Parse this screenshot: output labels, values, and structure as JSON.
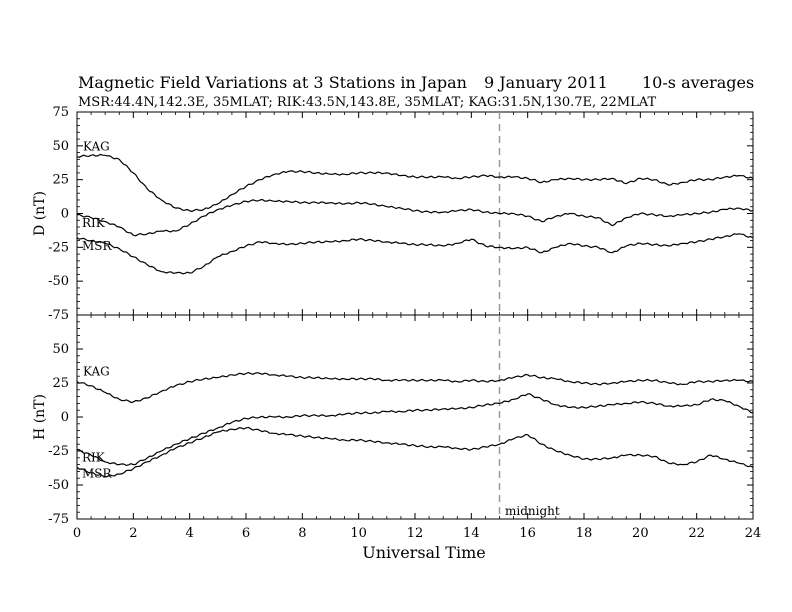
{
  "header": {
    "title_main": "Magnetic Field Variations at 3 Stations in Japan",
    "title_date": "9   January  2011",
    "title_avg": "10-s averages",
    "subtitle": "MSR:44.4N,142.3E, 35MLAT;  RIK:43.5N,143.8E, 35MLAT;  KAG:31.5N,130.7E, 22MLAT"
  },
  "colors": {
    "trace": "#000000",
    "midnight_line": "#9a9a9a",
    "frame": "#000000"
  },
  "chart_data": [
    {
      "type": "line",
      "panel": "top",
      "ylabel": "D (nT)",
      "ylim": [
        -75,
        75
      ],
      "yticks": [
        -75,
        -50,
        -25,
        0,
        25,
        50,
        75
      ],
      "xlim": [
        0,
        24
      ],
      "xticks": [
        0,
        2,
        4,
        6,
        8,
        10,
        12,
        14,
        16,
        18,
        20,
        22,
        24
      ],
      "series": [
        {
          "name": "KAG",
          "x": [
            0,
            0.5,
            1,
            1.5,
            2,
            2.5,
            3,
            3.5,
            4,
            4.5,
            5,
            5.5,
            6,
            6.5,
            7,
            7.5,
            8,
            8.5,
            9,
            9.5,
            10,
            10.5,
            11,
            11.5,
            12,
            12.5,
            13,
            13.5,
            14,
            14.5,
            15,
            15.5,
            16,
            16.5,
            17,
            17.5,
            18,
            18.5,
            19,
            19.5,
            20,
            20.5,
            21,
            21.5,
            22,
            22.5,
            23,
            23.5,
            24
          ],
          "y": [
            42,
            43,
            43,
            40,
            30,
            18,
            10,
            4,
            2,
            3,
            7,
            14,
            20,
            25,
            29,
            31,
            31,
            30,
            29,
            29,
            30,
            30,
            30,
            28,
            27,
            27,
            27,
            26,
            27,
            28,
            27,
            27,
            26,
            23,
            25,
            26,
            25,
            25,
            26,
            22,
            26,
            25,
            21,
            23,
            25,
            25,
            27,
            28,
            26
          ]
        },
        {
          "name": "RIK",
          "x": [
            0,
            0.5,
            1,
            1.5,
            2,
            2.5,
            3,
            3.5,
            4,
            4.5,
            5,
            5.5,
            6,
            6.5,
            7,
            7.5,
            8,
            8.5,
            9,
            9.5,
            10,
            10.5,
            11,
            11.5,
            12,
            12.5,
            13,
            13.5,
            14,
            14.5,
            15,
            15.5,
            16,
            16.5,
            17,
            17.5,
            18,
            18.5,
            19,
            19.5,
            20,
            20.5,
            21,
            21.5,
            22,
            22.5,
            23,
            23.5,
            24
          ],
          "y": [
            -1,
            -3,
            -6,
            -10,
            -16,
            -15,
            -13,
            -13,
            -8,
            -2,
            3,
            6,
            9,
            10,
            9,
            9,
            8,
            8,
            8,
            7,
            8,
            7,
            5,
            4,
            2,
            1,
            1,
            2,
            3,
            1,
            0,
            0,
            -2,
            -6,
            -2,
            0,
            -2,
            -3,
            -9,
            -3,
            0,
            -1,
            -2,
            -1,
            0,
            1,
            3,
            4,
            2
          ]
        },
        {
          "name": "MSR",
          "x": [
            0,
            0.5,
            1,
            1.5,
            2,
            2.5,
            3,
            3.5,
            4,
            4.5,
            5,
            5.5,
            6,
            6.5,
            7,
            7.5,
            8,
            8.5,
            9,
            9.5,
            10,
            10.5,
            11,
            11.5,
            12,
            12.5,
            13,
            13.5,
            14,
            14.5,
            15,
            15.5,
            16,
            16.5,
            17,
            17.5,
            18,
            18.5,
            19,
            19.5,
            20,
            20.5,
            21,
            21.5,
            22,
            22.5,
            23,
            23.5,
            24
          ],
          "y": [
            -18,
            -20,
            -22,
            -26,
            -32,
            -38,
            -43,
            -44,
            -44,
            -39,
            -32,
            -28,
            -24,
            -21,
            -22,
            -23,
            -22,
            -21,
            -21,
            -20,
            -19,
            -20,
            -21,
            -22,
            -23,
            -23,
            -24,
            -22,
            -19,
            -24,
            -25,
            -26,
            -25,
            -29,
            -25,
            -22,
            -24,
            -25,
            -29,
            -24,
            -22,
            -23,
            -24,
            -22,
            -21,
            -19,
            -17,
            -15,
            -18
          ]
        }
      ]
    },
    {
      "type": "line",
      "panel": "bottom",
      "ylabel": "H (nT)",
      "xlabel": "Universal Time",
      "ylim": [
        -75,
        75
      ],
      "yticks": [
        -75,
        -50,
        -25,
        0,
        25,
        50,
        75
      ],
      "xlim": [
        0,
        24
      ],
      "xticks": [
        0,
        2,
        4,
        6,
        8,
        10,
        12,
        14,
        16,
        18,
        20,
        22,
        24
      ],
      "series": [
        {
          "name": "KAG",
          "x": [
            0,
            0.5,
            1,
            1.5,
            2,
            2.5,
            3,
            3.5,
            4,
            4.5,
            5,
            5.5,
            6,
            6.5,
            7,
            7.5,
            8,
            8.5,
            9,
            9.5,
            10,
            10.5,
            11,
            11.5,
            12,
            12.5,
            13,
            13.5,
            14,
            14.5,
            15,
            15.5,
            16,
            16.5,
            17,
            17.5,
            18,
            18.5,
            19,
            19.5,
            20,
            20.5,
            21,
            21.5,
            22,
            22.5,
            23,
            23.5,
            24
          ],
          "y": [
            26,
            23,
            18,
            13,
            11,
            14,
            19,
            23,
            26,
            28,
            29,
            31,
            32,
            32,
            31,
            30,
            29,
            29,
            28,
            28,
            28,
            28,
            27,
            27,
            27,
            27,
            27,
            26,
            27,
            26,
            27,
            29,
            31,
            29,
            28,
            26,
            25,
            24,
            25,
            26,
            27,
            27,
            25,
            24,
            26,
            26,
            27,
            27,
            26
          ]
        },
        {
          "name": "RIK",
          "x": [
            0,
            0.5,
            1,
            1.5,
            2,
            2.5,
            3,
            3.5,
            4,
            4.5,
            5,
            5.5,
            6,
            6.5,
            7,
            7.5,
            8,
            8.5,
            9,
            9.5,
            10,
            10.5,
            11,
            11.5,
            12,
            12.5,
            13,
            13.5,
            14,
            14.5,
            15,
            15.5,
            16,
            16.5,
            17,
            17.5,
            18,
            18.5,
            19,
            19.5,
            20,
            20.5,
            21,
            21.5,
            22,
            22.5,
            23,
            23.5,
            24
          ],
          "y": [
            -24,
            -28,
            -33,
            -35,
            -35,
            -30,
            -25,
            -20,
            -16,
            -12,
            -8,
            -4,
            -1,
            0,
            0,
            0,
            1,
            1,
            1,
            2,
            3,
            3,
            4,
            4,
            5,
            5,
            6,
            6,
            7,
            9,
            10,
            13,
            17,
            13,
            9,
            7,
            7,
            8,
            9,
            10,
            11,
            10,
            8,
            8,
            9,
            13,
            12,
            8,
            3
          ]
        },
        {
          "name": "MSR",
          "x": [
            0,
            0.5,
            1,
            1.5,
            2,
            2.5,
            3,
            3.5,
            4,
            4.5,
            5,
            5.5,
            6,
            6.5,
            7,
            7.5,
            8,
            8.5,
            9,
            9.5,
            10,
            10.5,
            11,
            11.5,
            12,
            12.5,
            13,
            13.5,
            14,
            14.5,
            15,
            15.5,
            16,
            16.5,
            17,
            17.5,
            18,
            18.5,
            19,
            19.5,
            20,
            20.5,
            21,
            21.5,
            22,
            22.5,
            23,
            23.5,
            24
          ],
          "y": [
            -37,
            -41,
            -44,
            -42,
            -38,
            -33,
            -28,
            -23,
            -19,
            -15,
            -11,
            -9,
            -8,
            -10,
            -12,
            -13,
            -14,
            -15,
            -16,
            -17,
            -17,
            -18,
            -19,
            -20,
            -21,
            -22,
            -22,
            -23,
            -24,
            -22,
            -20,
            -16,
            -13,
            -20,
            -25,
            -28,
            -31,
            -31,
            -30,
            -28,
            -28,
            -29,
            -34,
            -35,
            -33,
            -28,
            -31,
            -34,
            -37
          ]
        }
      ]
    }
  ],
  "annotations": {
    "midnight_label": "midnight",
    "midnight_ut": 15
  }
}
